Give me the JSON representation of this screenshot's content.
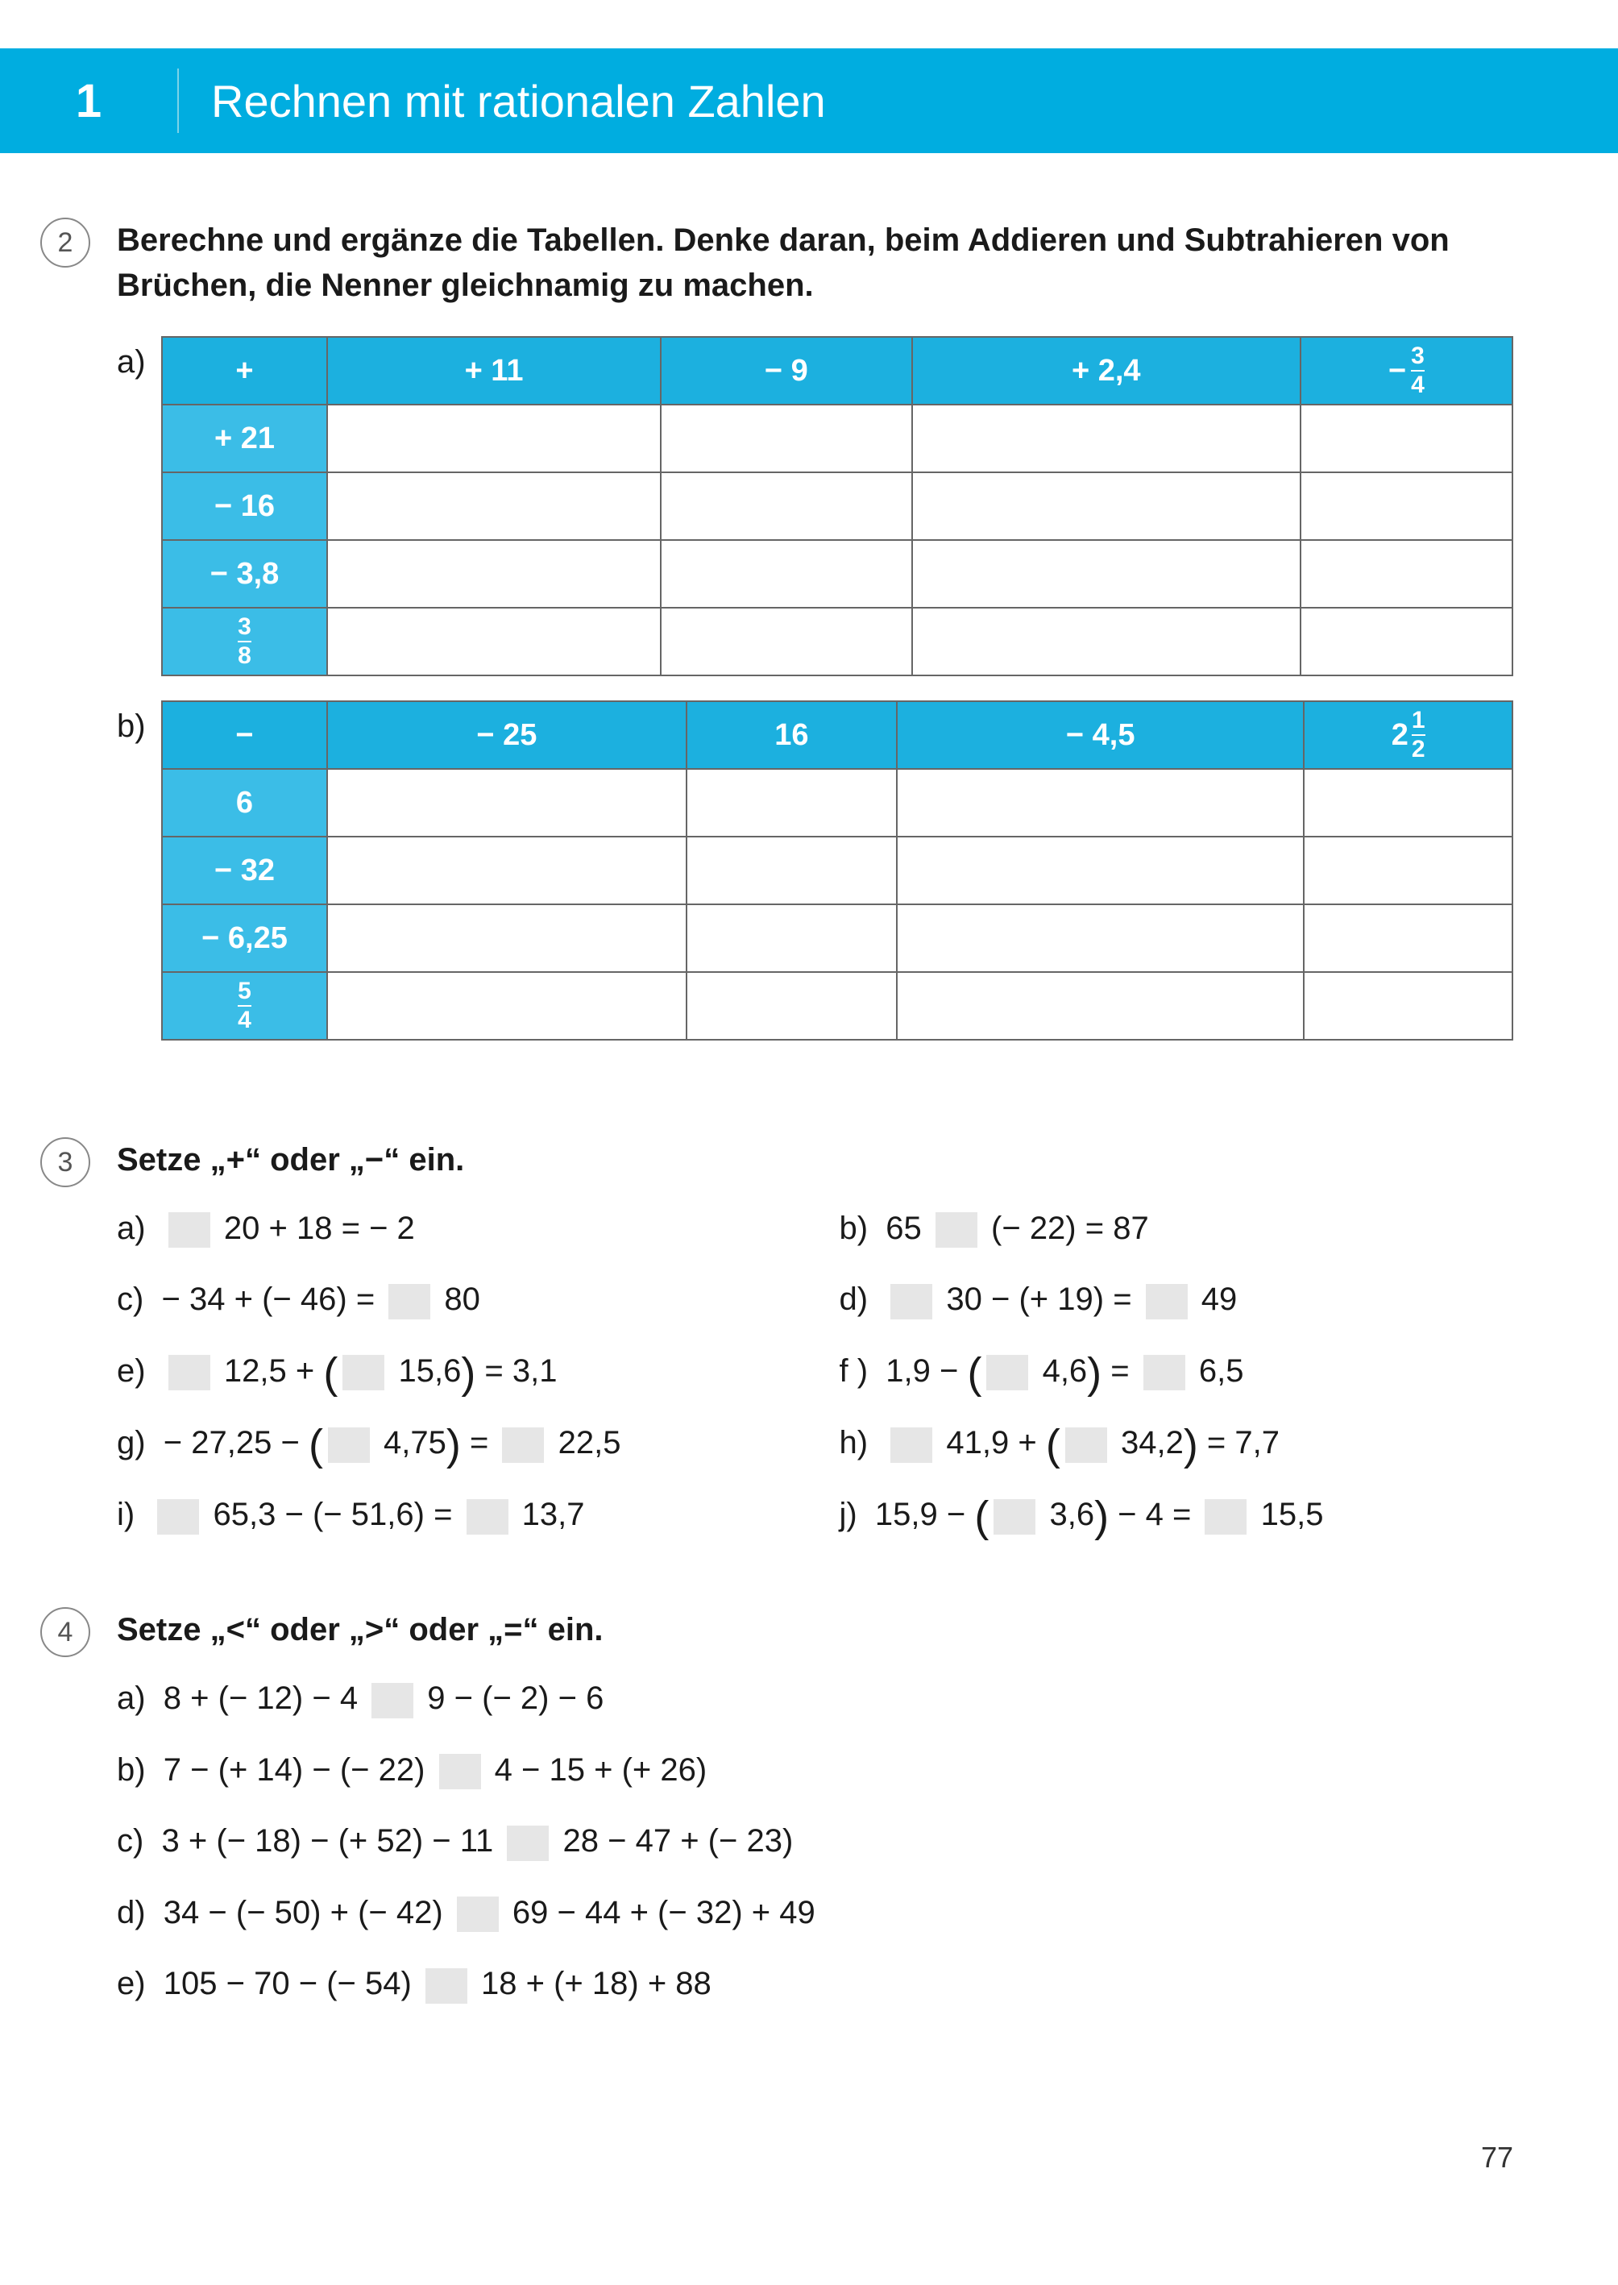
{
  "colors": {
    "accent": "#1cb0df",
    "accent_light": "#3bbde7",
    "header_bg": "#00ade0",
    "border": "#666666",
    "blank": "#e6e6e6"
  },
  "header": {
    "chapter_no": "1",
    "title": "Rechnen mit rationalen Zahlen"
  },
  "page_number": "77",
  "ex2": {
    "num": "2",
    "prompt": "Berechne und ergänze die Tabellen. Denke daran, beim Addieren und Subtrahieren von Brüchen, die Nenner gleichnamig zu machen.",
    "a": {
      "label": "a)",
      "op": "+",
      "cols": [
        {
          "type": "plain",
          "text": "+ 11"
        },
        {
          "type": "plain",
          "text": "− 9"
        },
        {
          "type": "plain",
          "text": "+ 2,4"
        },
        {
          "type": "frac_neg",
          "num": "3",
          "den": "4",
          "prefix": "−"
        }
      ],
      "rows": [
        {
          "type": "plain",
          "text": "+ 21"
        },
        {
          "type": "plain",
          "text": "− 16"
        },
        {
          "type": "plain",
          "text": "− 3,8"
        },
        {
          "type": "frac",
          "num": "3",
          "den": "8"
        }
      ]
    },
    "b": {
      "label": "b)",
      "op": "−",
      "cols": [
        {
          "type": "plain",
          "text": "− 25"
        },
        {
          "type": "plain",
          "text": "16"
        },
        {
          "type": "plain",
          "text": "− 4,5"
        },
        {
          "type": "mixed",
          "whole": "2",
          "num": "1",
          "den": "2"
        }
      ],
      "rows": [
        {
          "type": "plain",
          "text": "6"
        },
        {
          "type": "plain",
          "text": "− 32"
        },
        {
          "type": "plain",
          "text": "− 6,25"
        },
        {
          "type": "frac",
          "num": "5",
          "den": "4"
        }
      ]
    }
  },
  "ex3": {
    "num": "3",
    "prompt": "Setze „+“ oder „−“ ein.",
    "items": {
      "a": {
        "label": "a)",
        "pre": "",
        "seg1": "20 + 18 = − 2",
        "style": "blank_before_expr"
      },
      "b": {
        "label": "b)",
        "text": "65 ▯ (− 22) = 87"
      },
      "c": {
        "label": "c)",
        "text": "− 34 + (− 46) = ▯ 80"
      },
      "d": {
        "label": "d)",
        "text": "▯ 30 − (+ 19) = ▯ 49"
      },
      "e": {
        "label": "e)",
        "text": "▯ 12,5 + (▯ 15,6) = 3,1",
        "paren": true
      },
      "f": {
        "label": "f )",
        "text": "1,9 − (▯ 4,6) = ▯ 6,5",
        "paren": true
      },
      "g": {
        "label": "g)",
        "text": "− 27,25 − (▯ 4,75) = ▯ 22,5",
        "paren": true
      },
      "h": {
        "label": "h)",
        "text": "▯ 41,9 + (▯ 34,2) = 7,7",
        "paren": true
      },
      "i": {
        "label": "i)",
        "text": "▯ 65,3 − (− 51,6) = ▯ 13,7"
      },
      "j": {
        "label": "j)",
        "text": "15,9 − (▯ 3,6) − 4 = ▯ 15,5",
        "paren": true
      }
    }
  },
  "ex4": {
    "num": "4",
    "prompt": "Setze „<“ oder „>“ oder „=“ ein.",
    "items": [
      {
        "label": "a)",
        "left": "8 + (− 12) − 4",
        "right": "9 − (− 2) − 6"
      },
      {
        "label": "b)",
        "left": "7 − (+ 14) − (− 22)",
        "right": "4 − 15 + (+ 26)"
      },
      {
        "label": "c)",
        "left": "3 + (− 18) − (+ 52) − 11",
        "right": "28 − 47 + (− 23)"
      },
      {
        "label": "d)",
        "left": "34 − (− 50) + (− 42)",
        "right": "69 − 44 + (− 32) + 49"
      },
      {
        "label": "e)",
        "left": "105 − 70 − (− 54)",
        "right": "18 + (+ 18) + 88"
      }
    ]
  }
}
